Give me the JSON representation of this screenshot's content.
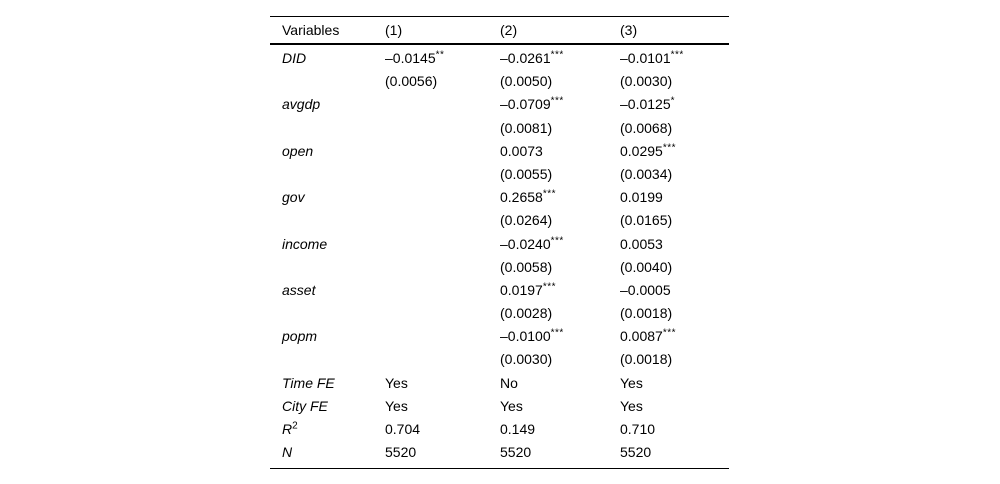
{
  "colors": {
    "background": "#ffffff",
    "text": "#000000",
    "rule": "#000000"
  },
  "table": {
    "columns": [
      "Variables",
      "(1)",
      "(2)",
      "(3)"
    ],
    "rows": [
      {
        "label": "DID",
        "italic": true,
        "cells": [
          {
            "text": "–0.0145",
            "sup": "**"
          },
          {
            "text": "–0.0261",
            "sup": "***"
          },
          {
            "text": "–0.0101",
            "sup": "***"
          }
        ]
      },
      {
        "label": "",
        "italic": false,
        "cells": [
          {
            "text": "(0.0056)"
          },
          {
            "text": "(0.0050)"
          },
          {
            "text": "(0.0030)"
          }
        ]
      },
      {
        "label": "avgdp",
        "italic": true,
        "cells": [
          {
            "text": ""
          },
          {
            "text": "–0.0709",
            "sup": "***"
          },
          {
            "text": "–0.0125",
            "sup": "*"
          }
        ]
      },
      {
        "label": "",
        "italic": false,
        "cells": [
          {
            "text": ""
          },
          {
            "text": "(0.0081)"
          },
          {
            "text": "(0.0068)"
          }
        ]
      },
      {
        "label": "open",
        "italic": true,
        "cells": [
          {
            "text": ""
          },
          {
            "text": "0.0073"
          },
          {
            "text": "0.0295",
            "sup": "***"
          }
        ]
      },
      {
        "label": "",
        "italic": false,
        "cells": [
          {
            "text": ""
          },
          {
            "text": "(0.0055)"
          },
          {
            "text": "(0.0034)"
          }
        ]
      },
      {
        "label": "gov",
        "italic": true,
        "cells": [
          {
            "text": ""
          },
          {
            "text": "0.2658",
            "sup": "***"
          },
          {
            "text": "0.0199"
          }
        ]
      },
      {
        "label": "",
        "italic": false,
        "cells": [
          {
            "text": ""
          },
          {
            "text": "(0.0264)"
          },
          {
            "text": "(0.0165)"
          }
        ]
      },
      {
        "label": "income",
        "italic": true,
        "cells": [
          {
            "text": ""
          },
          {
            "text": "–0.0240",
            "sup": "***"
          },
          {
            "text": "0.0053"
          }
        ]
      },
      {
        "label": "",
        "italic": false,
        "cells": [
          {
            "text": ""
          },
          {
            "text": "(0.0058)"
          },
          {
            "text": "(0.0040)"
          }
        ]
      },
      {
        "label": "asset",
        "italic": true,
        "cells": [
          {
            "text": ""
          },
          {
            "text": "0.0197",
            "sup": "***"
          },
          {
            "text": "–0.0005"
          }
        ]
      },
      {
        "label": "",
        "italic": false,
        "cells": [
          {
            "text": ""
          },
          {
            "text": "(0.0028)"
          },
          {
            "text": "(0.0018)"
          }
        ]
      },
      {
        "label": "popm",
        "italic": true,
        "cells": [
          {
            "text": ""
          },
          {
            "text": "–0.0100",
            "sup": "***"
          },
          {
            "text": "0.0087",
            "sup": "***"
          }
        ]
      },
      {
        "label": "",
        "italic": false,
        "cells": [
          {
            "text": ""
          },
          {
            "text": "(0.0030)"
          },
          {
            "text": "(0.0018)"
          }
        ]
      },
      {
        "label": "Time FE",
        "italic": true,
        "cells": [
          {
            "text": "Yes"
          },
          {
            "text": "No"
          },
          {
            "text": "Yes"
          }
        ]
      },
      {
        "label": "City FE",
        "italic": true,
        "cells": [
          {
            "text": "Yes"
          },
          {
            "text": "Yes"
          },
          {
            "text": "Yes"
          }
        ]
      },
      {
        "label": "R",
        "label_sup": "2",
        "italic": true,
        "cells": [
          {
            "text": "0.704"
          },
          {
            "text": "0.149"
          },
          {
            "text": "0.710"
          }
        ]
      },
      {
        "label": "N",
        "italic": true,
        "cells": [
          {
            "text": "5520"
          },
          {
            "text": "5520"
          },
          {
            "text": "5520"
          }
        ]
      }
    ]
  }
}
